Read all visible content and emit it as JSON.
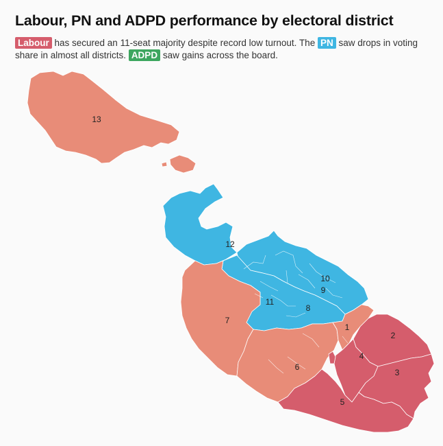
{
  "title": "Labour, PN and ADPD performance by electoral district",
  "subtitle": {
    "labour_tag": "Labour",
    "text1": " has secured an 11-seat majority despite record low turnout. The ",
    "pn_tag": "PN",
    "text2": " saw drops in voting share in almost all districts. ",
    "adpd_tag": "ADPD",
    "text3": " saw gains across the board."
  },
  "colors": {
    "labour_strong": "#d55d6c",
    "labour_light": "#e88c78",
    "pn": "#3fb6e2",
    "adpd": "#3da65f"
  },
  "districts": {
    "d1": "1",
    "d2": "2",
    "d3": "3",
    "d4": "4",
    "d5": "5",
    "d6": "6",
    "d7": "7",
    "d8": "8",
    "d9": "9",
    "d10": "10",
    "d11": "11",
    "d12": "12",
    "d13": "13"
  }
}
